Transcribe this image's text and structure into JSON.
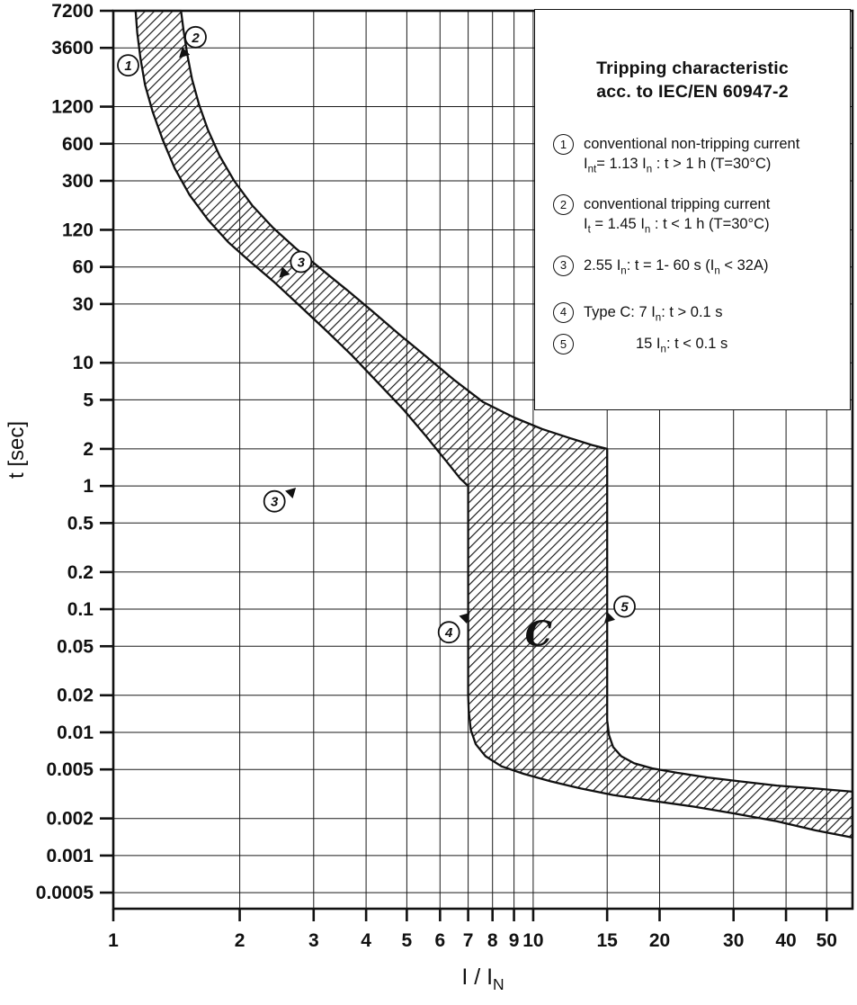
{
  "chart_data": {
    "type": "area",
    "title": "Tripping characteristic acc. to IEC/EN 60947-2",
    "xlabel": "I / IN",
    "ylabel": "t [sec]",
    "xlabel_rich": [
      [
        "t",
        "I / I"
      ],
      [
        "s",
        "N"
      ]
    ],
    "x_scale": "log",
    "y_scale": "log",
    "x_range": [
      1,
      57.6
    ],
    "y_range": [
      0.00037,
      7200
    ],
    "grid": true,
    "x_ticks": [
      "1",
      "2",
      "3",
      "4",
      "5",
      "6",
      "7",
      "8",
      "9",
      "10",
      "15",
      "20",
      "30",
      "40",
      "50"
    ],
    "y_ticks": [
      "7200",
      "3600",
      "1200",
      "600",
      "300",
      "120",
      "60",
      "30",
      "10",
      "5",
      "2",
      "1",
      "0.5",
      "0.2",
      "0.1",
      "0.05",
      "0.02",
      "0.01",
      "0.005",
      "0.002",
      "0.001",
      "0.0005"
    ],
    "band": {
      "description": "Tripping band between minimum and maximum tripping curves, hatched",
      "lower_curve": [
        [
          1.13,
          7200
        ],
        [
          1.14,
          4800
        ],
        [
          1.16,
          3000
        ],
        [
          1.19,
          1800
        ],
        [
          1.24,
          1100
        ],
        [
          1.31,
          650
        ],
        [
          1.4,
          380
        ],
        [
          1.52,
          230
        ],
        [
          1.68,
          145
        ],
        [
          1.88,
          95
        ],
        [
          2.12,
          66
        ],
        [
          2.42,
          45
        ],
        [
          2.78,
          29
        ],
        [
          3.2,
          18.5
        ],
        [
          3.7,
          11.5
        ],
        [
          4.25,
          7.0
        ],
        [
          4.9,
          4.2
        ],
        [
          5.55,
          2.55
        ],
        [
          6.2,
          1.6
        ],
        [
          6.7,
          1.15
        ],
        [
          7.0,
          1.0
        ],
        [
          7.0,
          0.02
        ],
        [
          7.02,
          0.015
        ],
        [
          7.1,
          0.0105
        ],
        [
          7.3,
          0.008
        ],
        [
          7.7,
          0.0064
        ],
        [
          8.4,
          0.0053
        ],
        [
          9.5,
          0.0046
        ],
        [
          11,
          0.004
        ],
        [
          13,
          0.0035
        ],
        [
          15.5,
          0.0031
        ],
        [
          19,
          0.0028
        ],
        [
          24,
          0.0025
        ],
        [
          30,
          0.0022
        ],
        [
          38,
          0.0019
        ],
        [
          47,
          0.0016
        ],
        [
          57.6,
          0.0014
        ]
      ],
      "upper_curve": [
        [
          1.45,
          7200
        ],
        [
          1.47,
          5000
        ],
        [
          1.5,
          3200
        ],
        [
          1.54,
          2000
        ],
        [
          1.6,
          1250
        ],
        [
          1.68,
          780
        ],
        [
          1.79,
          480
        ],
        [
          1.94,
          300
        ],
        [
          2.14,
          190
        ],
        [
          2.4,
          125
        ],
        [
          2.72,
          85
        ],
        [
          3.12,
          58
        ],
        [
          3.6,
          39
        ],
        [
          4.15,
          26
        ],
        [
          4.8,
          17
        ],
        [
          5.6,
          11
        ],
        [
          6.5,
          7.2
        ],
        [
          7.6,
          4.8
        ],
        [
          9.0,
          3.6
        ],
        [
          10.5,
          2.9
        ],
        [
          12.2,
          2.45
        ],
        [
          13.8,
          2.15
        ],
        [
          15,
          2.0
        ],
        [
          15,
          0.0125
        ],
        [
          15.15,
          0.0095
        ],
        [
          15.5,
          0.0076
        ],
        [
          16.2,
          0.0064
        ],
        [
          17.4,
          0.0056
        ],
        [
          19.2,
          0.0051
        ],
        [
          22,
          0.0047
        ],
        [
          26,
          0.0043
        ],
        [
          31,
          0.004
        ],
        [
          38,
          0.0037
        ],
        [
          47,
          0.0035
        ],
        [
          57.6,
          0.0033
        ]
      ]
    },
    "annotations": [
      {
        "label": "1",
        "i": 1.085,
        "t": 2600,
        "pointer": null
      },
      {
        "label": "2",
        "i": 1.57,
        "t": 4400,
        "pointer": {
          "i": 1.49,
          "t": 3400,
          "angle": 135
        }
      },
      {
        "label": "3",
        "i": 2.8,
        "t": 66,
        "pointer": {
          "i": 2.58,
          "t": 56,
          "angle": 135
        }
      },
      {
        "label": "3",
        "i": 2.42,
        "t": 0.75,
        "pointer": {
          "i": 2.62,
          "t": 0.85,
          "angle": 315
        }
      },
      {
        "label": "4",
        "i": 6.3,
        "t": 0.065,
        "pointer": {
          "i": 6.8,
          "t": 0.082,
          "angle": 315
        }
      },
      {
        "label": "5",
        "i": 16.5,
        "t": 0.105,
        "pointer": {
          "i": 15.35,
          "t": 0.088,
          "angle": 135
        }
      }
    ],
    "region_label": {
      "text": "C",
      "i": 10.3,
      "t": 0.062
    }
  },
  "legend": {
    "title_line1": "Tripping characteristic",
    "title_line2": "acc. to IEC/EN 60947-2",
    "items": [
      {
        "num": "1",
        "lines": [
          [
            [
              "t",
              "conventional non-tripping current"
            ]
          ],
          [
            [
              "t",
              "I"
            ],
            [
              "s",
              "nt"
            ],
            [
              "t",
              "= 1.13 I"
            ],
            [
              "s",
              "n"
            ],
            [
              "t",
              " : t > 1 h  (T=30°C)"
            ]
          ]
        ]
      },
      {
        "num": "2",
        "lines": [
          [
            [
              "t",
              "conventional tripping current"
            ]
          ],
          [
            [
              "t",
              "I"
            ],
            [
              "s",
              "t"
            ],
            [
              "t",
              " = 1.45 I"
            ],
            [
              "s",
              "n"
            ],
            [
              "t",
              " : t < 1 h  (T=30°C)"
            ]
          ]
        ]
      },
      {
        "num": "3",
        "lines": [
          [
            [
              "t",
              "2.55 I"
            ],
            [
              "s",
              "n"
            ],
            [
              "t",
              ": t = 1- 60 s (I"
            ],
            [
              "s",
              "n"
            ],
            [
              "t",
              " < 32A)"
            ]
          ]
        ]
      },
      {
        "num": "4",
        "lines": [
          [
            [
              "t",
              "Type C:  7 I"
            ],
            [
              "s",
              "n"
            ],
            [
              "t",
              ": t > 0.1 s"
            ]
          ]
        ]
      },
      {
        "num": "5",
        "indent": true,
        "lines": [
          [
            [
              "t",
              "15 I"
            ],
            [
              "s",
              "n"
            ],
            [
              "t",
              ": t < 0.1 s"
            ]
          ]
        ]
      }
    ]
  }
}
